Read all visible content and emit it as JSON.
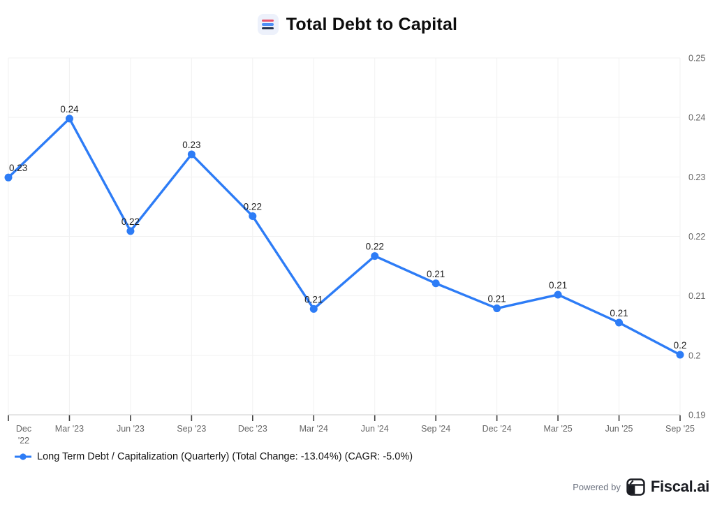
{
  "header": {
    "title": "Total Debt to Capital"
  },
  "chart_data": {
    "type": "line",
    "title": "Total Debt to Capital",
    "categories": [
      "Dec '22",
      "Mar '23",
      "Jun '23",
      "Sep '23",
      "Dec '23",
      "Mar '24",
      "Jun '24",
      "Sep '24",
      "Dec '24",
      "Mar '25",
      "Jun '25",
      "Sep '25"
    ],
    "series": [
      {
        "name": "Long Term Debt / Capitalization (Quarterly)",
        "values": [
          0.2299,
          0.2398,
          0.2209,
          0.2338,
          0.2234,
          0.2078,
          0.2167,
          0.2121,
          0.2079,
          0.2102,
          0.2055,
          0.2001
        ],
        "point_labels": [
          "0.23",
          "0.24",
          "0.22",
          "0.23",
          "0.22",
          "0.21",
          "0.22",
          "0.21",
          "0.21",
          "0.21",
          "0.21",
          "0.2"
        ]
      }
    ],
    "ylim": [
      0.19,
      0.25
    ],
    "yticks": [
      0.25,
      0.24,
      0.23,
      0.22,
      0.21,
      0.2,
      0.19
    ],
    "ytick_labels": [
      "0.25",
      "0.24",
      "0.23",
      "0.22",
      "0.21",
      "0.2",
      "0.19"
    ],
    "grid": true,
    "legend_position": "bottom-left",
    "total_change": "-13.04%",
    "cagr": "-5.0%"
  },
  "legend": {
    "label": "Long Term Debt / Capitalization (Quarterly) (Total Change: -13.04%) (CAGR: -5.0%)"
  },
  "footer": {
    "powered_by": "Powered by",
    "brand": "Fiscal.ai"
  },
  "colors": {
    "line": "#2D7CF6",
    "grid": "#F1F1F1",
    "axis_line": "#D8D8D8",
    "tick": "#3F3F3F",
    "axis_label": "#666666",
    "point_label": "#1F1F1F",
    "icon_bg": "#EDF1FB",
    "icon_red": "#E8516B",
    "icon_blue": "#4D8EF5",
    "icon_dark": "#25334D",
    "brand_dark": "#1A1C22"
  }
}
